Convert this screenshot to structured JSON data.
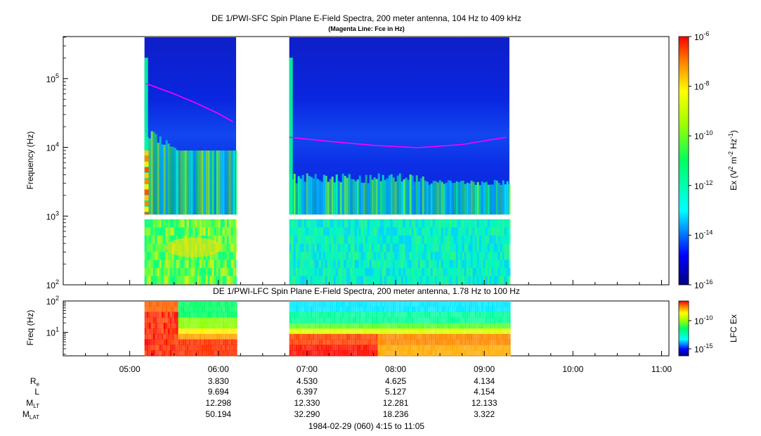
{
  "chart_data": [
    {
      "type": "heatmap",
      "title": "DE 1/PWI-SFC  Spin Plane E-Field Spectra, 200 meter antenna, 104 Hz to 409 kHz",
      "subtitle": "(Magenta Line: Fce in Hz)",
      "ylabel": "Frequency (Hz)",
      "y_scale": "log",
      "ylim": [
        100,
        409000
      ],
      "y_ticks": [
        {
          "value": 100,
          "base": "10",
          "exp": "2"
        },
        {
          "value": 1000,
          "base": "10",
          "exp": "3"
        },
        {
          "value": 10000,
          "base": "10",
          "exp": "4"
        },
        {
          "value": 100000,
          "base": "10",
          "exp": "5"
        }
      ],
      "colorbar": {
        "label_parts": [
          "Ex (V",
          "2",
          " m",
          "-2",
          " Hz",
          "-1",
          ")"
        ],
        "scale": "log",
        "range": [
          1e-16,
          1e-06
        ],
        "ticks": [
          {
            "base": "10",
            "exp": "-6"
          },
          {
            "base": "10",
            "exp": "-8"
          },
          {
            "base": "10",
            "exp": "-10"
          },
          {
            "base": "10",
            "exp": "-12"
          },
          {
            "base": "10",
            "exp": "-14"
          },
          {
            "base": "10",
            "exp": "-16"
          }
        ]
      },
      "data_intervals": [
        [
          "05:10",
          "06:12"
        ],
        [
          "06:48",
          "09:17"
        ]
      ],
      "fce_line": {
        "name": "Fce",
        "color": "#ff00ff",
        "segments": [
          {
            "x": [
              "05:11",
              "05:30",
              "05:45",
              "06:00",
              "06:10"
            ],
            "y": [
              85000,
              60000,
              44000,
              31000,
              23500
            ]
          },
          {
            "x": [
              "06:48",
              "07:15",
              "07:45",
              "08:15",
              "08:45",
              "09:15"
            ],
            "y": [
              14000,
              12200,
              10700,
              9900,
              11000,
              14000
            ]
          }
        ]
      }
    },
    {
      "type": "heatmap",
      "title": "DE 1/PWI-LFC  Spin Plane E-Field Spectra, 200 meter antenna, 1.78 Hz to 100 Hz",
      "ylabel": "Freq (Hz)",
      "y_scale": "log",
      "ylim": [
        1.78,
        100
      ],
      "y_ticks": [
        {
          "value": 10,
          "base": "10",
          "exp": "1"
        },
        {
          "value": 100,
          "base": "10",
          "exp": "2"
        }
      ],
      "colorbar": {
        "label": "LFC Ex",
        "scale": "log",
        "ticks": [
          {
            "base": "10",
            "exp": "-10"
          },
          {
            "base": "10",
            "exp": "-15"
          }
        ]
      },
      "data_intervals": [
        [
          "05:10",
          "06:12"
        ],
        [
          "06:48",
          "09:17"
        ]
      ]
    }
  ],
  "time_axis": {
    "range_label": "1984-02-29 (060) 4:15 to 11:05",
    "ticks": [
      "05:00",
      "06:00",
      "07:00",
      "08:00",
      "09:00",
      "10:00",
      "11:00"
    ]
  },
  "ephemeris": {
    "rows": [
      {
        "label": "R",
        "sub": "e",
        "values": [
          "3.830",
          "4.530",
          "4.625",
          "4.134"
        ]
      },
      {
        "label": "L",
        "sub": "",
        "values": [
          "9.694",
          "6.397",
          "5.127",
          "4.154"
        ]
      },
      {
        "label": "M",
        "sub": "LT",
        "values": [
          "12.298",
          "12.330",
          "12.281",
          "12.133"
        ]
      },
      {
        "label": "M",
        "sub": "LAT",
        "values": [
          "50.194",
          "32.290",
          "18.236",
          "3.322"
        ]
      }
    ]
  },
  "colors": {
    "spectrogram_gap": "#ffffff",
    "fce_line": "#ff00ff"
  }
}
